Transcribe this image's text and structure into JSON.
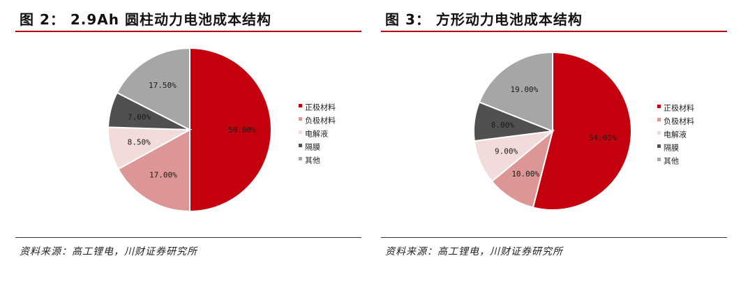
{
  "chart_data": [
    {
      "type": "pie",
      "title": "图 2： 2.9Ah 圆柱动力电池成本结构",
      "source": "资料来源：高工锂电，川财证券研究所",
      "legend_position": "right",
      "slices": [
        {
          "name": "正极材料",
          "value": 50.0,
          "label": "50.00%",
          "color": "#c4000f"
        },
        {
          "name": "负极材料",
          "value": 17.0,
          "label": "17.00%",
          "color": "#dc9695"
        },
        {
          "name": "电解液",
          "value": 8.5,
          "label": "8.50%",
          "color": "#f2dcdb"
        },
        {
          "name": "隔膜",
          "value": 7.0,
          "label": "7.00%",
          "color": "#505050"
        },
        {
          "name": "其他",
          "value": 17.5,
          "label": "17.50%",
          "color": "#a6a6a6"
        }
      ]
    },
    {
      "type": "pie",
      "title": "图 3： 方形动力电池成本结构",
      "source": "资料来源：高工锂电，川财证券研究所",
      "legend_position": "right",
      "slices": [
        {
          "name": "正极材料",
          "value": 54.0,
          "label": "54.00%",
          "color": "#c4000f"
        },
        {
          "name": "负极材料",
          "value": 10.0,
          "label": "10.00%",
          "color": "#dc9695"
        },
        {
          "name": "电解液",
          "value": 9.0,
          "label": "9.00%",
          "color": "#f2dcdb"
        },
        {
          "name": "隔膜",
          "value": 8.0,
          "label": "8.00%",
          "color": "#505050"
        },
        {
          "name": "其他",
          "value": 19.0,
          "label": "19.00%",
          "color": "#a6a6a6"
        }
      ]
    }
  ]
}
